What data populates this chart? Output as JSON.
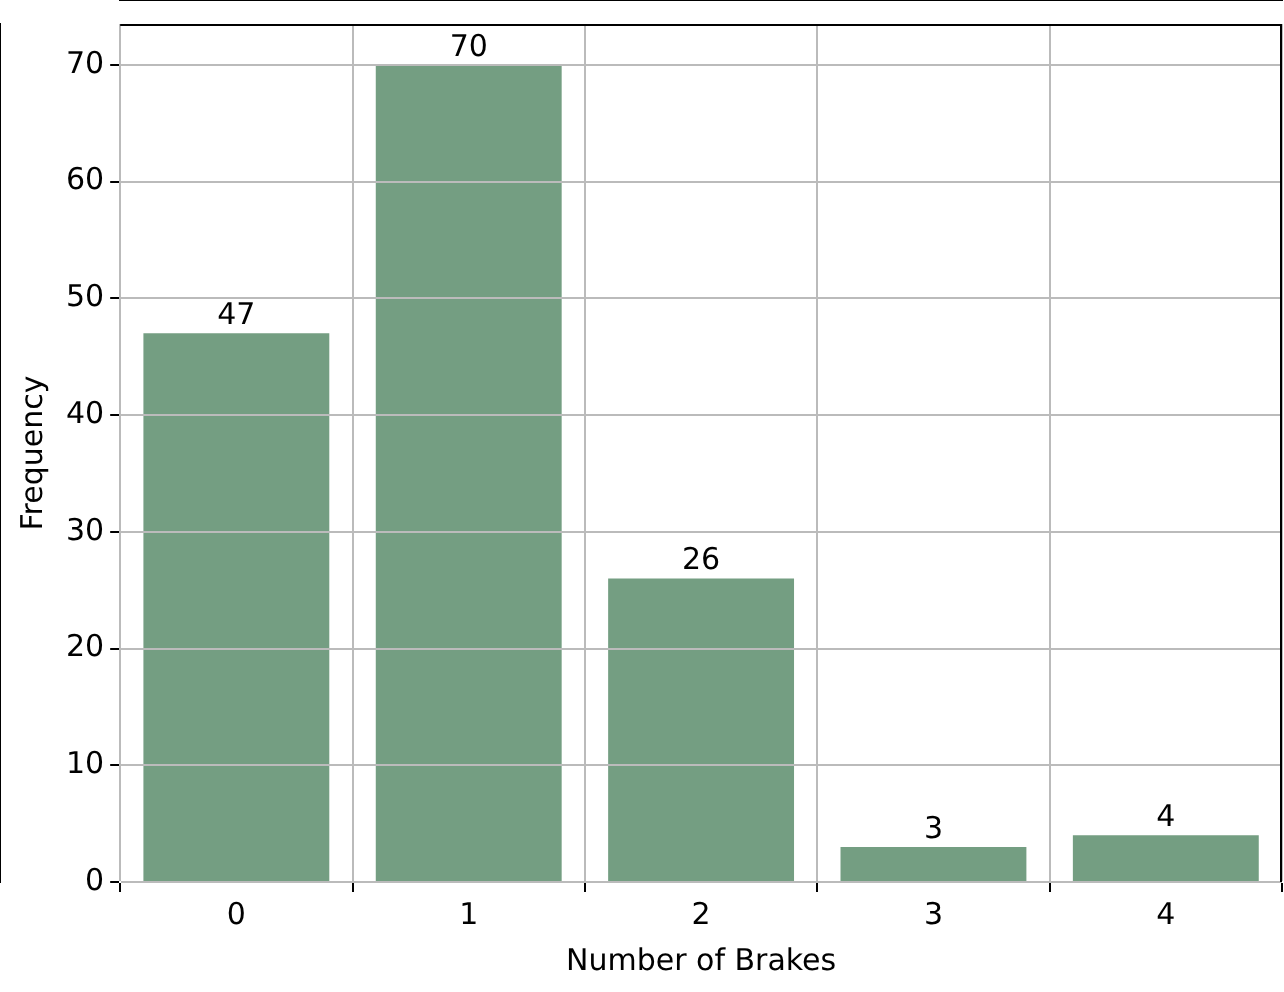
{
  "chart_data": {
    "type": "bar",
    "xlabel": "Number of Brakes",
    "ylabel": "Frequency",
    "categories": [
      "0",
      "1",
      "2",
      "3",
      "4"
    ],
    "values": [
      47,
      70,
      26,
      3,
      4
    ],
    "color": "#749e82",
    "ylim": [
      0,
      73.5
    ],
    "yticks": [
      0,
      10,
      20,
      30,
      40,
      50,
      60,
      70
    ],
    "grid": true,
    "data_labels": true,
    "legend": false
  }
}
